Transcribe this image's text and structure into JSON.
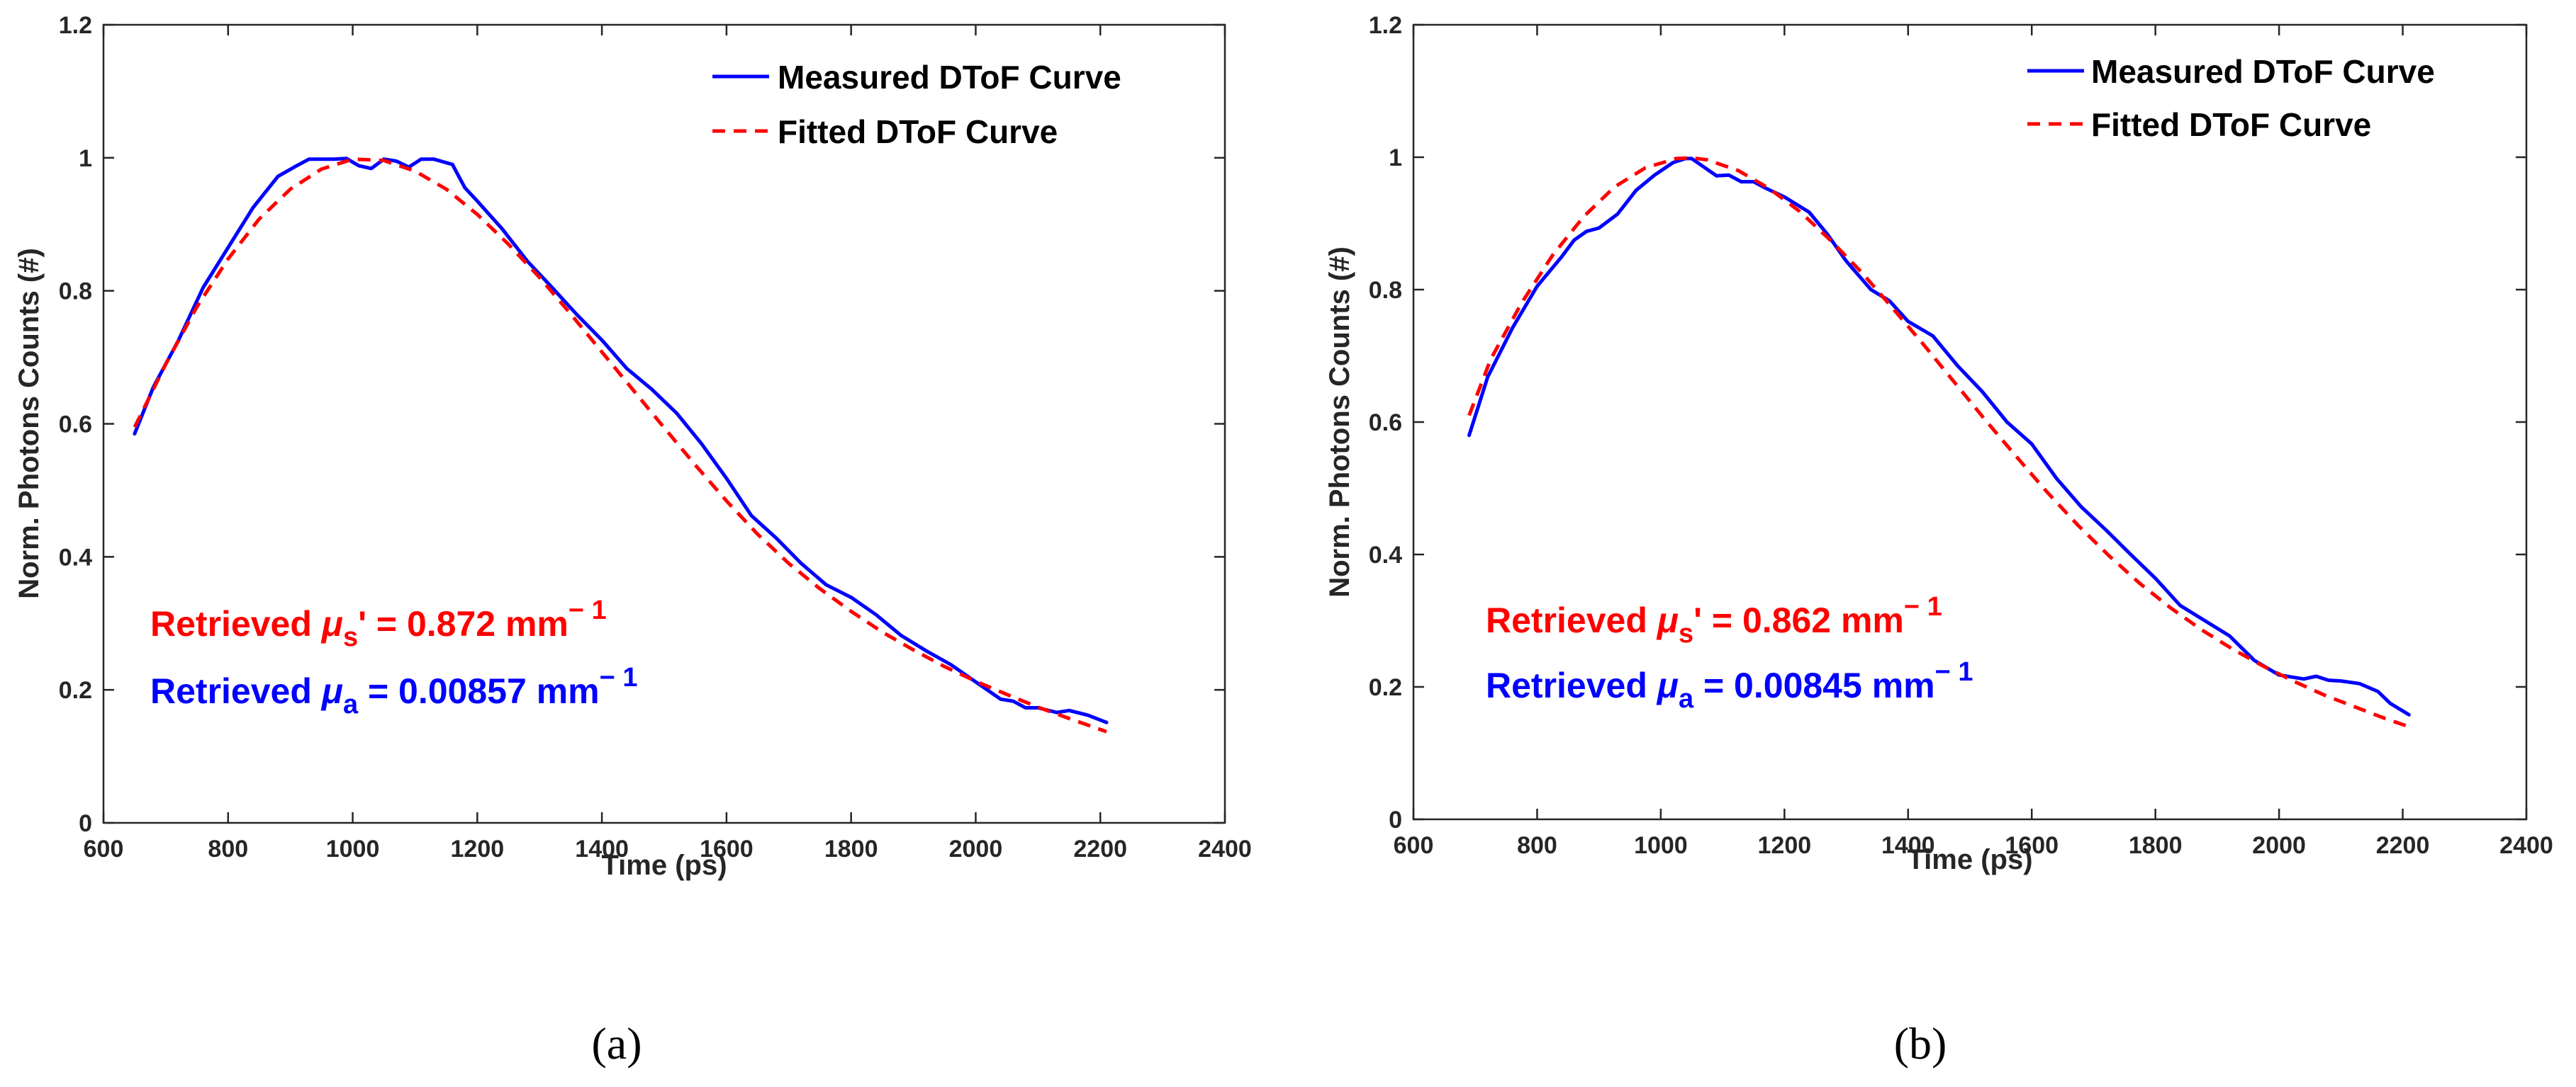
{
  "colors": {
    "measured": "#0000ff",
    "fitted": "#ff0000",
    "axis": "#262626"
  },
  "chart_data": [
    {
      "type": "line",
      "panel_label": "(a)",
      "xlabel": "Time (ps)",
      "ylabel": "Norm. Photons Counts (#)",
      "xlim": [
        600,
        2400
      ],
      "ylim": [
        0,
        1.2
      ],
      "xticks": [
        600,
        800,
        1000,
        1200,
        1400,
        1600,
        1800,
        2000,
        2200,
        2400
      ],
      "yticks": [
        0,
        0.2,
        0.4,
        0.6,
        0.8,
        1,
        1.2
      ],
      "legend": [
        "Measured DToF Curve",
        "Fitted DToF Curve"
      ],
      "annotations": {
        "mus": {
          "prefix": "Retrieved ",
          "symbol": "μ",
          "sub": "s",
          "suffix": "' = 0.872 mm",
          "sup": "− 1"
        },
        "mua": {
          "prefix": "Retrieved ",
          "symbol": "μ",
          "sub": "a",
          "suffix": " = 0.00857 mm",
          "sup": "− 1"
        }
      },
      "series": [
        {
          "name": "Measured DToF Curve",
          "style": "solid",
          "x": [
            650,
            680,
            720,
            760,
            800,
            840,
            880,
            910,
            930,
            950,
            970,
            990,
            1010,
            1030,
            1050,
            1070,
            1090,
            1110,
            1130,
            1160,
            1180,
            1200,
            1240,
            1280,
            1320,
            1360,
            1400,
            1440,
            1480,
            1520,
            1560,
            1600,
            1640,
            1680,
            1720,
            1760,
            1800,
            1840,
            1880,
            1920,
            1960,
            2000,
            2040,
            2060,
            2080,
            2100,
            2130,
            2150,
            2180,
            2210
          ],
          "values": [
            0.585,
            0.655,
            0.725,
            0.805,
            0.865,
            0.925,
            0.972,
            0.988,
            0.998,
            0.998,
            0.998,
            0.999,
            0.988,
            0.984,
            0.998,
            0.995,
            0.986,
            0.998,
            0.998,
            0.99,
            0.955,
            0.935,
            0.893,
            0.845,
            0.805,
            0.764,
            0.726,
            0.683,
            0.652,
            0.616,
            0.57,
            0.518,
            0.462,
            0.428,
            0.39,
            0.358,
            0.339,
            0.313,
            0.282,
            0.259,
            0.238,
            0.212,
            0.186,
            0.183,
            0.173,
            0.173,
            0.166,
            0.169,
            0.162,
            0.151
          ]
        },
        {
          "name": "Fitted DToF Curve",
          "style": "dashed",
          "x": [
            650,
            700,
            750,
            800,
            850,
            900,
            950,
            1000,
            1050,
            1100,
            1150,
            1200,
            1250,
            1300,
            1350,
            1400,
            1450,
            1500,
            1550,
            1600,
            1650,
            1700,
            1750,
            1800,
            1850,
            1900,
            1950,
            2000,
            2050,
            2100,
            2150,
            2210
          ],
          "values": [
            0.595,
            0.69,
            0.776,
            0.848,
            0.908,
            0.953,
            0.983,
            0.998,
            0.996,
            0.98,
            0.953,
            0.915,
            0.87,
            0.82,
            0.765,
            0.708,
            0.651,
            0.594,
            0.538,
            0.484,
            0.434,
            0.39,
            0.352,
            0.318,
            0.287,
            0.26,
            0.235,
            0.213,
            0.193,
            0.174,
            0.157,
            0.137
          ]
        }
      ]
    },
    {
      "type": "line",
      "panel_label": "(b)",
      "xlabel": "Time (ps)",
      "ylabel": "Norm. Photons Counts (#)",
      "xlim": [
        600,
        2400
      ],
      "ylim": [
        0,
        1.2
      ],
      "xticks": [
        600,
        800,
        1000,
        1200,
        1400,
        1600,
        1800,
        2000,
        2200,
        2400
      ],
      "yticks": [
        0,
        0.2,
        0.4,
        0.6,
        0.8,
        1,
        1.2
      ],
      "legend": [
        "Measured DToF Curve",
        "Fitted DToF Curve"
      ],
      "annotations": {
        "mus": {
          "prefix": "Retrieved ",
          "symbol": "μ",
          "sub": "s",
          "suffix": "' = 0.862 mm",
          "sup": "− 1"
        },
        "mua": {
          "prefix": "Retrieved ",
          "symbol": "μ",
          "sub": "a",
          "suffix": " = 0.00845 mm",
          "sup": "− 1"
        }
      },
      "series": [
        {
          "name": "Measured DToF Curve",
          "style": "solid",
          "x": [
            690,
            720,
            760,
            800,
            840,
            860,
            880,
            900,
            930,
            960,
            990,
            1020,
            1040,
            1050,
            1070,
            1090,
            1110,
            1130,
            1150,
            1170,
            1200,
            1240,
            1270,
            1300,
            1340,
            1370,
            1400,
            1440,
            1480,
            1520,
            1560,
            1600,
            1640,
            1680,
            1720,
            1760,
            1800,
            1840,
            1880,
            1920,
            1960,
            2000,
            2040,
            2060,
            2080,
            2100,
            2130,
            2160,
            2180,
            2210
          ],
          "values": [
            0.58,
            0.668,
            0.742,
            0.805,
            0.85,
            0.875,
            0.888,
            0.893,
            0.914,
            0.95,
            0.973,
            0.992,
            0.998,
            0.998,
            0.985,
            0.972,
            0.973,
            0.963,
            0.963,
            0.953,
            0.94,
            0.917,
            0.883,
            0.843,
            0.8,
            0.783,
            0.752,
            0.73,
            0.685,
            0.646,
            0.6,
            0.567,
            0.515,
            0.472,
            0.437,
            0.4,
            0.364,
            0.323,
            0.3,
            0.277,
            0.24,
            0.218,
            0.212,
            0.216,
            0.21,
            0.209,
            0.205,
            0.193,
            0.175,
            0.158
          ]
        },
        {
          "name": "Fitted DToF Curve",
          "style": "dashed",
          "x": [
            690,
            725,
            775,
            825,
            875,
            925,
            975,
            1025,
            1050,
            1075,
            1125,
            1175,
            1225,
            1275,
            1325,
            1375,
            1425,
            1475,
            1525,
            1575,
            1625,
            1675,
            1725,
            1775,
            1825,
            1875,
            1925,
            1975,
            2025,
            2075,
            2125,
            2175,
            2210
          ],
          "values": [
            0.61,
            0.695,
            0.78,
            0.852,
            0.91,
            0.955,
            0.984,
            0.998,
            0.999,
            0.996,
            0.98,
            0.953,
            0.918,
            0.874,
            0.826,
            0.772,
            0.717,
            0.66,
            0.603,
            0.548,
            0.494,
            0.444,
            0.398,
            0.356,
            0.319,
            0.286,
            0.257,
            0.231,
            0.208,
            0.187,
            0.169,
            0.151,
            0.14
          ]
        }
      ]
    }
  ]
}
